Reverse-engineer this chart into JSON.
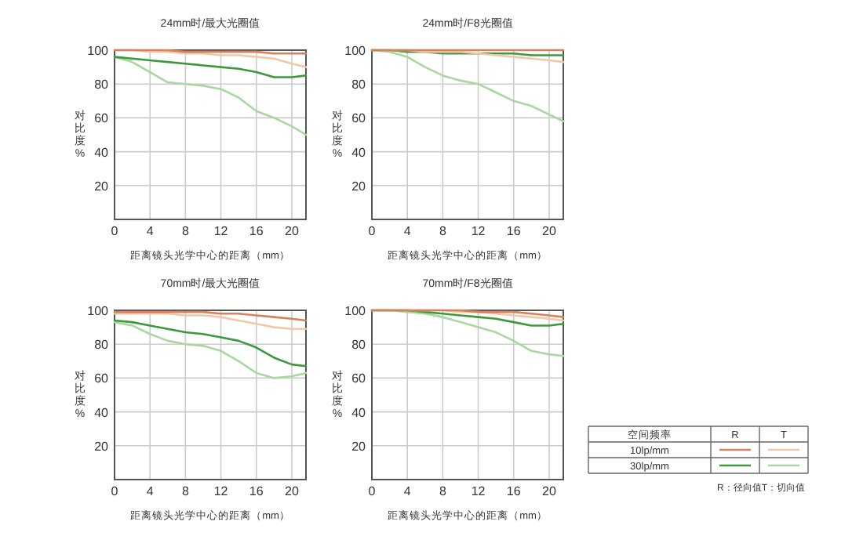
{
  "chart_data": [
    {
      "type": "line",
      "title": "24mm时/最大光圈值",
      "xlabel": "距离镜头光学中心的距离（mm）",
      "ylabel": "对比度%",
      "xlim": [
        0,
        21.6
      ],
      "ylim": [
        0,
        100
      ],
      "xticks": [
        0,
        4,
        8,
        12,
        16,
        20
      ],
      "yticks": [
        20,
        40,
        60,
        80,
        100
      ],
      "grid": true,
      "x": [
        0,
        2,
        4,
        6,
        8,
        10,
        12,
        14,
        16,
        18,
        20,
        21.6
      ],
      "series": [
        {
          "color": "#d9805a",
          "values": [
            100,
            100,
            100,
            100,
            99,
            99,
            99,
            99,
            99,
            98,
            98,
            98
          ]
        },
        {
          "color": "#f0c8a8",
          "values": [
            100,
            100,
            99,
            99,
            98,
            98,
            97,
            97,
            96,
            95,
            92,
            90
          ]
        },
        {
          "color": "#3a9a3a",
          "values": [
            96,
            95,
            94,
            93,
            92,
            91,
            90,
            89,
            87,
            84,
            84,
            85
          ]
        },
        {
          "color": "#a8d8a0",
          "values": [
            96,
            93,
            87,
            81,
            80,
            79,
            77,
            72,
            64,
            60,
            55,
            50
          ]
        }
      ]
    },
    {
      "type": "line",
      "title": "24mm时/F8光圈值",
      "xlabel": "距离镜头光学中心的距离（mm）",
      "ylabel": "对比度%",
      "xlim": [
        0,
        21.6
      ],
      "ylim": [
        0,
        100
      ],
      "xticks": [
        0,
        4,
        8,
        12,
        16,
        20
      ],
      "yticks": [
        20,
        40,
        60,
        80,
        100
      ],
      "grid": true,
      "x": [
        0,
        2,
        4,
        6,
        8,
        10,
        12,
        14,
        16,
        18,
        20,
        21.6
      ],
      "series": [
        {
          "color": "#d9805a",
          "values": [
            100,
            100,
            100,
            100,
            100,
            100,
            100,
            100,
            100,
            100,
            100,
            100
          ]
        },
        {
          "color": "#f0c8a8",
          "values": [
            100,
            100,
            100,
            99,
            99,
            99,
            98,
            97,
            96,
            95,
            94,
            93
          ]
        },
        {
          "color": "#3a9a3a",
          "values": [
            100,
            100,
            99,
            99,
            98,
            98,
            98,
            98,
            98,
            97,
            97,
            97
          ]
        },
        {
          "color": "#a8d8a0",
          "values": [
            100,
            99,
            96,
            90,
            85,
            82,
            80,
            75,
            70,
            67,
            62,
            58
          ]
        }
      ]
    },
    {
      "type": "line",
      "title": "70mm时/最大光圈值",
      "xlabel": "距离镜头光学中心的距离（mm）",
      "ylabel": "对比度%",
      "xlim": [
        0,
        21.6
      ],
      "ylim": [
        0,
        100
      ],
      "xticks": [
        0,
        4,
        8,
        12,
        16,
        20
      ],
      "yticks": [
        20,
        40,
        60,
        80,
        100
      ],
      "grid": true,
      "x": [
        0,
        2,
        4,
        6,
        8,
        10,
        12,
        14,
        16,
        18,
        20,
        21.6
      ],
      "series": [
        {
          "color": "#d9805a",
          "values": [
            99,
            99,
            99,
            99,
            99,
            99,
            98,
            98,
            97,
            96,
            95,
            94
          ]
        },
        {
          "color": "#f0c8a8",
          "values": [
            98,
            98,
            98,
            98,
            97,
            97,
            96,
            94,
            92,
            90,
            89,
            89
          ]
        },
        {
          "color": "#3a9a3a",
          "values": [
            94,
            93,
            91,
            89,
            87,
            86,
            84,
            82,
            78,
            72,
            68,
            67
          ]
        },
        {
          "color": "#a8d8a0",
          "values": [
            93,
            91,
            86,
            82,
            80,
            79,
            76,
            70,
            63,
            60,
            61,
            63
          ]
        }
      ]
    },
    {
      "type": "line",
      "title": "70mm时/F8光圈值",
      "xlabel": "距离镜头光学中心的距离（mm）",
      "ylabel": "对比度%",
      "xlim": [
        0,
        21.6
      ],
      "ylim": [
        0,
        100
      ],
      "xticks": [
        0,
        4,
        8,
        12,
        16,
        20
      ],
      "yticks": [
        20,
        40,
        60,
        80,
        100
      ],
      "grid": true,
      "x": [
        0,
        2,
        4,
        6,
        8,
        10,
        12,
        14,
        16,
        18,
        20,
        21.6
      ],
      "series": [
        {
          "color": "#d9805a",
          "values": [
            100,
            100,
            100,
            100,
            100,
            100,
            99,
            99,
            99,
            98,
            97,
            96
          ]
        },
        {
          "color": "#f0c8a8",
          "values": [
            100,
            100,
            100,
            100,
            100,
            99,
            99,
            98,
            97,
            96,
            95,
            94
          ]
        },
        {
          "color": "#3a9a3a",
          "values": [
            100,
            100,
            100,
            99,
            98,
            97,
            96,
            95,
            93,
            91,
            91,
            92
          ]
        },
        {
          "color": "#a8d8a0",
          "values": [
            100,
            100,
            99,
            98,
            96,
            93,
            90,
            87,
            82,
            76,
            74,
            73
          ]
        }
      ]
    },
    {
      "type": "other",
      "annotations": [
        "空间频率",
        "R",
        "T",
        "10lp/mm",
        "30lp/mm",
        "R：径向值T：切向值"
      ],
      "colors": [
        "#d9805a",
        "#f0c8a8",
        "#3a9a3a",
        "#a8d8a0"
      ]
    }
  ]
}
